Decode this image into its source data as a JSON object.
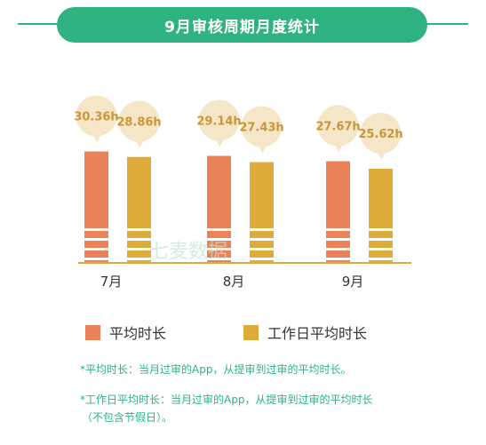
{
  "header": {
    "title": "9月审核周期月度统计"
  },
  "chart_data": {
    "type": "bar",
    "categories": [
      "7月",
      "8月",
      "9月"
    ],
    "series": [
      {
        "name": "平均时长",
        "values": [
          30.36,
          29.14,
          27.67
        ],
        "labels": [
          "30.36h",
          "29.14h",
          "27.67h"
        ],
        "color": "#ea8157"
      },
      {
        "name": "工作日平均时长",
        "values": [
          28.86,
          27.43,
          25.62
        ],
        "labels": [
          "28.86h",
          "27.43h",
          "25.62h"
        ],
        "color": "#dfac3c"
      }
    ],
    "bubble_color": "#f4e6c7",
    "label_color": "#c9963a",
    "ylim": [
      0,
      35
    ]
  },
  "watermark": "七麦数据",
  "notes": {
    "line1": "*平均时长：当月过审的App，从提审到过审的平均时长。",
    "line2": "*工作日平均时长：当月过审的App，从提审到过审的平均时长",
    "line3": "（不包含节假日）。"
  }
}
